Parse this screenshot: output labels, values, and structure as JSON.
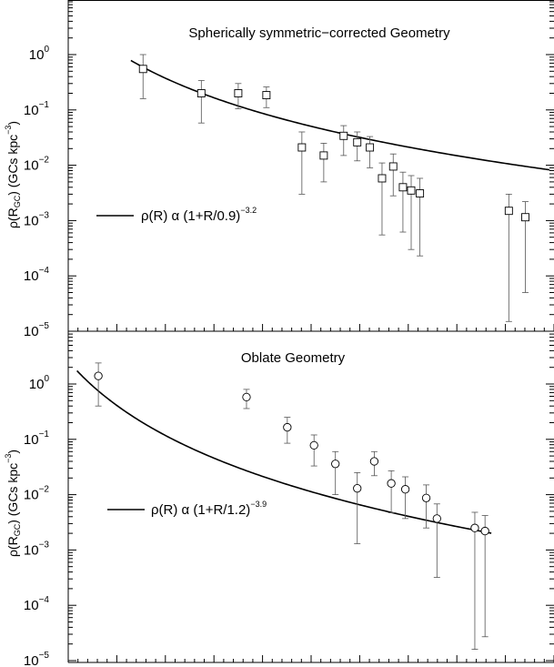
{
  "chart_data": [
    {
      "type": "scatter",
      "title": "Spherically symmetric−corrected Geometry",
      "ylabel_main": "ρ(R",
      "ylabel_sub": "GC",
      "ylabel_rest": ") (GCs kpc",
      "ylabel_sup": "−3",
      "ylabel_end": ")",
      "yscale": "log",
      "ylim": [
        1e-05,
        10
      ],
      "y_ticks": [
        {
          "mantissa": "10",
          "exp": "0",
          "value": 1
        },
        {
          "mantissa": "10",
          "exp": "−1",
          "value": 0.1
        },
        {
          "mantissa": "10",
          "exp": "−2",
          "value": 0.01
        },
        {
          "mantissa": "10",
          "exp": "−3",
          "value": 0.001
        },
        {
          "mantissa": "10",
          "exp": "−4",
          "value": 0.0001
        },
        {
          "mantissa": "10",
          "exp": "−5",
          "value": 1e-05
        }
      ],
      "xlim": [
        0,
        100
      ],
      "marker": "square",
      "points": [
        {
          "x": 15.4,
          "y": 0.55,
          "lo": 0.16,
          "hi": 1.0
        },
        {
          "x": 27.4,
          "y": 0.2,
          "lo": 0.058,
          "hi": 0.34
        },
        {
          "x": 35.0,
          "y": 0.2,
          "lo": 0.105,
          "hi": 0.3
        },
        {
          "x": 40.8,
          "y": 0.185,
          "lo": 0.11,
          "hi": 0.26
        },
        {
          "x": 48.1,
          "y": 0.021,
          "lo": 0.003,
          "hi": 0.04
        },
        {
          "x": 52.6,
          "y": 0.015,
          "lo": 0.005,
          "hi": 0.025
        },
        {
          "x": 56.7,
          "y": 0.034,
          "lo": 0.015,
          "hi": 0.052
        },
        {
          "x": 59.5,
          "y": 0.026,
          "lo": 0.012,
          "hi": 0.04
        },
        {
          "x": 62.1,
          "y": 0.021,
          "lo": 0.009,
          "hi": 0.033
        },
        {
          "x": 64.6,
          "y": 0.0058,
          "lo": 0.00055,
          "hi": 0.011
        },
        {
          "x": 66.9,
          "y": 0.0095,
          "lo": 0.0028,
          "hi": 0.016
        },
        {
          "x": 68.9,
          "y": 0.004,
          "lo": 0.00062,
          "hi": 0.0075
        },
        {
          "x": 70.6,
          "y": 0.0035,
          "lo": 0.0003,
          "hi": 0.0065
        },
        {
          "x": 72.4,
          "y": 0.0031,
          "lo": 0.00023,
          "hi": 0.0058
        },
        {
          "x": 90.7,
          "y": 0.0015,
          "lo": 1.5e-05,
          "hi": 0.003
        },
        {
          "x": 94.1,
          "y": 0.00115,
          "lo": 5e-05,
          "hi": 0.0022
        }
      ],
      "fit": {
        "A": 6.0,
        "scale": 14.5,
        "power": -3.2,
        "x_start": 12.9,
        "x_end": 99.1
      },
      "legend": {
        "prefix": "ρ(R) α (1+R/0.9)",
        "exponent": "−3.2",
        "position": "left"
      }
    },
    {
      "type": "scatter",
      "title": "Oblate Geometry",
      "ylabel_main": "ρ(R",
      "ylabel_sub": "GC",
      "ylabel_rest": ") (GCs kpc",
      "ylabel_sup": "−3",
      "ylabel_end": ")",
      "yscale": "log",
      "ylim": [
        1e-05,
        10
      ],
      "y_ticks": [
        {
          "mantissa": "10",
          "exp": "0",
          "value": 1
        },
        {
          "mantissa": "10",
          "exp": "−1",
          "value": 0.1
        },
        {
          "mantissa": "10",
          "exp": "−2",
          "value": 0.01
        },
        {
          "mantissa": "10",
          "exp": "−3",
          "value": 0.001
        },
        {
          "mantissa": "10",
          "exp": "−4",
          "value": 0.0001
        },
        {
          "mantissa": "10",
          "exp": "−5",
          "value": 1e-05
        }
      ],
      "xlim": [
        0,
        100
      ],
      "marker": "circle",
      "points": [
        {
          "x": 6.2,
          "y": 1.4,
          "lo": 0.4,
          "hi": 2.4
        },
        {
          "x": 36.7,
          "y": 0.58,
          "lo": 0.36,
          "hi": 0.8
        },
        {
          "x": 45.1,
          "y": 0.165,
          "lo": 0.085,
          "hi": 0.25
        },
        {
          "x": 50.6,
          "y": 0.078,
          "lo": 0.033,
          "hi": 0.12
        },
        {
          "x": 55.0,
          "y": 0.036,
          "lo": 0.01,
          "hi": 0.06
        },
        {
          "x": 59.5,
          "y": 0.013,
          "lo": 0.0013,
          "hi": 0.025
        },
        {
          "x": 63.0,
          "y": 0.04,
          "lo": 0.022,
          "hi": 0.06
        },
        {
          "x": 66.5,
          "y": 0.016,
          "lo": 0.0047,
          "hi": 0.027
        },
        {
          "x": 69.4,
          "y": 0.0125,
          "lo": 0.0037,
          "hi": 0.021
        },
        {
          "x": 73.7,
          "y": 0.0087,
          "lo": 0.0025,
          "hi": 0.015
        },
        {
          "x": 75.9,
          "y": 0.0037,
          "lo": 0.00032,
          "hi": 0.0068
        },
        {
          "x": 83.7,
          "y": 0.0025,
          "lo": 1.6e-05,
          "hi": 0.0048
        },
        {
          "x": 85.8,
          "y": 0.0022,
          "lo": 2.7e-05,
          "hi": 0.0042
        }
      ],
      "fit": {
        "A": 2.6,
        "scale": 16.5,
        "power": -3.9,
        "x_start": 1.8,
        "x_end": 87.1
      },
      "legend": {
        "prefix": "ρ(R) α (1+R/1.2)",
        "exponent": "−3.9",
        "position": "left"
      }
    }
  ]
}
